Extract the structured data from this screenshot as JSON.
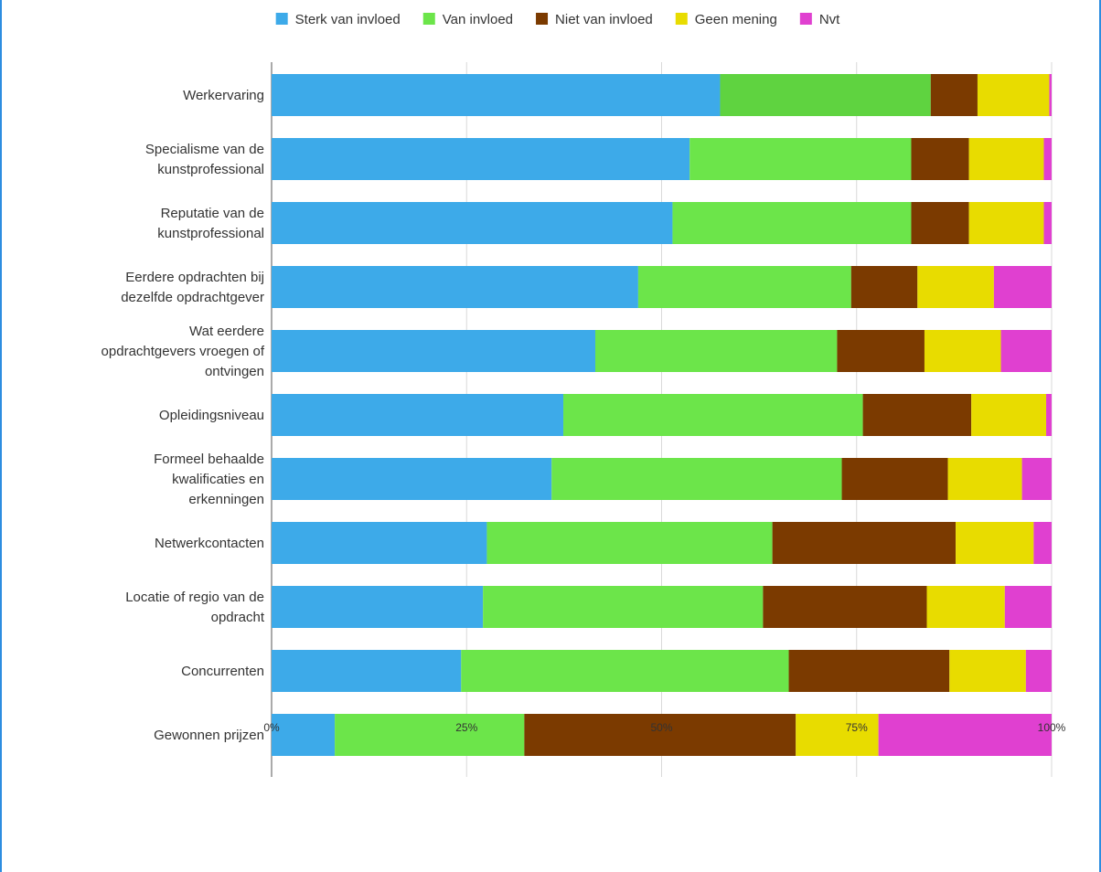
{
  "frame": {
    "border_color": "#2c8de0"
  },
  "chart_data": {
    "type": "bar",
    "orientation": "horizontal",
    "stacked": "percent",
    "title": "",
    "xlabel": "",
    "ylabel": "",
    "xlim": [
      0,
      100
    ],
    "x_ticks": [
      "0%",
      "25%",
      "50%",
      "75%",
      "100%"
    ],
    "grid": true,
    "legend_position": "top",
    "categories": [
      [
        "Werkervaring"
      ],
      [
        "Specialisme van de",
        "kunstprofessional"
      ],
      [
        "Reputatie van de",
        "kunstprofessional"
      ],
      [
        "Eerdere opdrachten bij",
        "dezelfde opdrachtgever"
      ],
      [
        "Wat eerdere",
        "opdrachtgevers vroegen of",
        "ontvingen"
      ],
      [
        "Opleidingsniveau"
      ],
      [
        "Formeel behaalde",
        "kwalificaties en",
        "erkenningen"
      ],
      [
        "Netwerkcontacten"
      ],
      [
        "Locatie of regio van de",
        "opdracht"
      ],
      [
        "Concurrenten"
      ],
      [
        "Gewonnen prijzen"
      ]
    ],
    "series": [
      {
        "name": "Sterk van invloed",
        "color": "#3daae9",
        "values": [
          57.5,
          53.6,
          51.4,
          47.0,
          41.5,
          37.4,
          35.9,
          27.6,
          27.1,
          24.3,
          8.1
        ]
      },
      {
        "name": "Van invloed",
        "color": "#6ce54a",
        "values": [
          27.0,
          28.4,
          30.6,
          27.3,
          31.0,
          38.4,
          37.2,
          36.6,
          35.9,
          42.0,
          24.3
        ]
      },
      {
        "name": "Niet van invloed",
        "color": "#7b3a00",
        "values": [
          6.0,
          7.4,
          7.4,
          8.5,
          11.2,
          13.9,
          13.6,
          23.5,
          21.0,
          20.6,
          34.8
        ]
      },
      {
        "name": "Geen mening",
        "color": "#e8dc00",
        "values": [
          9.2,
          9.6,
          9.6,
          9.8,
          9.8,
          9.6,
          9.5,
          10.0,
          10.0,
          9.8,
          10.6
        ]
      },
      {
        "name": "Nvt",
        "color": "#e040d0",
        "values": [
          0.3,
          1.0,
          1.0,
          7.4,
          6.5,
          0.7,
          3.8,
          2.3,
          6.0,
          3.3,
          22.2
        ]
      }
    ],
    "special_colors": {
      "row_0_series_1": "#5fd340"
    }
  }
}
